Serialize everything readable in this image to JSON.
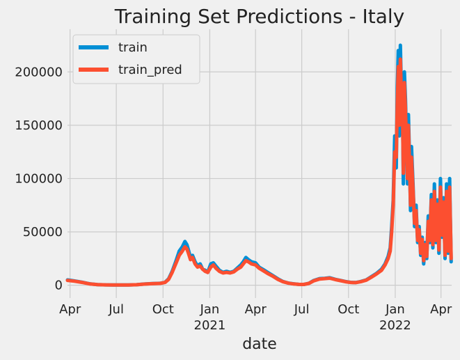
{
  "chart_data": {
    "type": "line",
    "title": "Training Set Predictions - Italy",
    "xlabel": "date",
    "ylabel": "",
    "x_range": [
      "2020-03-27",
      "2022-04-22"
    ],
    "ylim": [
      -12000,
      240000
    ],
    "y_ticks": [
      0,
      50000,
      100000,
      150000,
      200000
    ],
    "y_tick_labels": [
      "0",
      "50000",
      "100000",
      "150000",
      "200000"
    ],
    "x_ticks": [
      {
        "date": "2020-04-01",
        "label": "Apr",
        "sublabel": ""
      },
      {
        "date": "2020-07-01",
        "label": "Jul",
        "sublabel": ""
      },
      {
        "date": "2020-10-01",
        "label": "Oct",
        "sublabel": ""
      },
      {
        "date": "2021-01-01",
        "label": "Jan",
        "sublabel": "2021"
      },
      {
        "date": "2021-04-01",
        "label": "Apr",
        "sublabel": ""
      },
      {
        "date": "2021-07-01",
        "label": "Jul",
        "sublabel": ""
      },
      {
        "date": "2021-10-01",
        "label": "Oct",
        "sublabel": ""
      },
      {
        "date": "2022-01-01",
        "label": "Jan",
        "sublabel": "2022"
      },
      {
        "date": "2022-04-01",
        "label": "Apr",
        "sublabel": ""
      }
    ],
    "grid": true,
    "legend_position": "top-left",
    "series": [
      {
        "name": "train",
        "color": "#008fd5",
        "points": [
          [
            "2020-03-27",
            5000
          ],
          [
            "2020-04-10",
            4000
          ],
          [
            "2020-04-25",
            2800
          ],
          [
            "2020-05-10",
            1300
          ],
          [
            "2020-05-25",
            600
          ],
          [
            "2020-06-10",
            350
          ],
          [
            "2020-06-25",
            250
          ],
          [
            "2020-07-10",
            200
          ],
          [
            "2020-07-25",
            280
          ],
          [
            "2020-08-10",
            450
          ],
          [
            "2020-08-25",
            1100
          ],
          [
            "2020-09-10",
            1500
          ],
          [
            "2020-09-25",
            1800
          ],
          [
            "2020-10-05",
            2800
          ],
          [
            "2020-10-12",
            6000
          ],
          [
            "2020-10-19",
            13000
          ],
          [
            "2020-10-26",
            22000
          ],
          [
            "2020-11-02",
            32000
          ],
          [
            "2020-11-08",
            36000
          ],
          [
            "2020-11-13",
            41000
          ],
          [
            "2020-11-17",
            38000
          ],
          [
            "2020-11-20",
            33000
          ],
          [
            "2020-11-24",
            26000
          ],
          [
            "2020-11-28",
            28000
          ],
          [
            "2020-12-03",
            22000
          ],
          [
            "2020-12-08",
            18000
          ],
          [
            "2020-12-13",
            20000
          ],
          [
            "2020-12-18",
            15000
          ],
          [
            "2020-12-23",
            14000
          ],
          [
            "2020-12-28",
            12000
          ],
          [
            "2021-01-03",
            20000
          ],
          [
            "2021-01-08",
            21000
          ],
          [
            "2021-01-13",
            18000
          ],
          [
            "2021-01-20",
            14000
          ],
          [
            "2021-01-27",
            12000
          ],
          [
            "2021-02-03",
            13000
          ],
          [
            "2021-02-10",
            12000
          ],
          [
            "2021-02-17",
            13000
          ],
          [
            "2021-02-24",
            16000
          ],
          [
            "2021-03-03",
            19000
          ],
          [
            "2021-03-08",
            22000
          ],
          [
            "2021-03-13",
            26000
          ],
          [
            "2021-03-18",
            24000
          ],
          [
            "2021-03-24",
            22000
          ],
          [
            "2021-04-01",
            21000
          ],
          [
            "2021-04-08",
            17000
          ],
          [
            "2021-04-15",
            15000
          ],
          [
            "2021-04-25",
            12000
          ],
          [
            "2021-05-05",
            9000
          ],
          [
            "2021-05-15",
            6000
          ],
          [
            "2021-05-25",
            3500
          ],
          [
            "2021-06-05",
            2000
          ],
          [
            "2021-06-15",
            1300
          ],
          [
            "2021-06-25",
            800
          ],
          [
            "2021-07-05",
            700
          ],
          [
            "2021-07-15",
            1800
          ],
          [
            "2021-07-25",
            4500
          ],
          [
            "2021-08-05",
            6200
          ],
          [
            "2021-08-15",
            6500
          ],
          [
            "2021-08-25",
            7000
          ],
          [
            "2021-09-05",
            5500
          ],
          [
            "2021-09-15",
            4500
          ],
          [
            "2021-09-25",
            3500
          ],
          [
            "2021-10-05",
            2700
          ],
          [
            "2021-10-15",
            2500
          ],
          [
            "2021-10-25",
            3500
          ],
          [
            "2021-11-05",
            5000
          ],
          [
            "2021-11-15",
            8000
          ],
          [
            "2021-11-25",
            11000
          ],
          [
            "2021-12-05",
            15000
          ],
          [
            "2021-12-12",
            20000
          ],
          [
            "2021-12-18",
            27000
          ],
          [
            "2021-12-22",
            35000
          ],
          [
            "2021-12-25",
            55000
          ],
          [
            "2021-12-28",
            80000
          ],
          [
            "2021-12-31",
            140000
          ],
          [
            "2022-01-03",
            110000
          ],
          [
            "2022-01-05",
            185000
          ],
          [
            "2022-01-07",
            220000
          ],
          [
            "2022-01-09",
            140000
          ],
          [
            "2022-01-11",
            225000
          ],
          [
            "2022-01-13",
            185000
          ],
          [
            "2022-01-15",
            180000
          ],
          [
            "2022-01-17",
            95000
          ],
          [
            "2022-01-19",
            200000
          ],
          [
            "2022-01-21",
            175000
          ],
          [
            "2022-01-23",
            140000
          ],
          [
            "2022-01-25",
            95000
          ],
          [
            "2022-01-27",
            160000
          ],
          [
            "2022-01-29",
            120000
          ],
          [
            "2022-01-31",
            70000
          ],
          [
            "2022-02-02",
            130000
          ],
          [
            "2022-02-05",
            95000
          ],
          [
            "2022-02-08",
            55000
          ],
          [
            "2022-02-11",
            75000
          ],
          [
            "2022-02-14",
            40000
          ],
          [
            "2022-02-17",
            55000
          ],
          [
            "2022-02-20",
            28000
          ],
          [
            "2022-02-23",
            45000
          ],
          [
            "2022-02-26",
            20000
          ],
          [
            "2022-03-01",
            40000
          ],
          [
            "2022-03-04",
            25000
          ],
          [
            "2022-03-07",
            65000
          ],
          [
            "2022-03-10",
            40000
          ],
          [
            "2022-03-13",
            85000
          ],
          [
            "2022-03-16",
            35000
          ],
          [
            "2022-03-19",
            95000
          ],
          [
            "2022-03-22",
            40000
          ],
          [
            "2022-03-25",
            80000
          ],
          [
            "2022-03-28",
            30000
          ],
          [
            "2022-03-31",
            100000
          ],
          [
            "2022-04-03",
            45000
          ],
          [
            "2022-04-06",
            82000
          ],
          [
            "2022-04-09",
            25000
          ],
          [
            "2022-04-12",
            95000
          ],
          [
            "2022-04-15",
            30000
          ],
          [
            "2022-04-18",
            100000
          ],
          [
            "2022-04-21",
            22000
          ]
        ]
      },
      {
        "name": "train_pred",
        "color": "#fc4f30",
        "points": [
          [
            "2020-03-27",
            4500
          ],
          [
            "2020-04-10",
            3800
          ],
          [
            "2020-04-25",
            2600
          ],
          [
            "2020-05-10",
            1200
          ],
          [
            "2020-05-25",
            550
          ],
          [
            "2020-06-10",
            320
          ],
          [
            "2020-06-25",
            240
          ],
          [
            "2020-07-10",
            220
          ],
          [
            "2020-07-25",
            300
          ],
          [
            "2020-08-10",
            480
          ],
          [
            "2020-08-25",
            1050
          ],
          [
            "2020-09-10",
            1450
          ],
          [
            "2020-09-25",
            1700
          ],
          [
            "2020-10-05",
            2600
          ],
          [
            "2020-10-12",
            5500
          ],
          [
            "2020-10-19",
            12000
          ],
          [
            "2020-10-26",
            20000
          ],
          [
            "2020-11-02",
            28000
          ],
          [
            "2020-11-08",
            32000
          ],
          [
            "2020-11-13",
            36000
          ],
          [
            "2020-11-17",
            34000
          ],
          [
            "2020-11-20",
            30000
          ],
          [
            "2020-11-24",
            24000
          ],
          [
            "2020-11-28",
            26000
          ],
          [
            "2020-12-03",
            20000
          ],
          [
            "2020-12-08",
            17000
          ],
          [
            "2020-12-13",
            18000
          ],
          [
            "2020-12-18",
            15000
          ],
          [
            "2020-12-23",
            13000
          ],
          [
            "2020-12-28",
            12000
          ],
          [
            "2021-01-03",
            17000
          ],
          [
            "2021-01-08",
            19000
          ],
          [
            "2021-01-13",
            16000
          ],
          [
            "2021-01-20",
            13000
          ],
          [
            "2021-01-27",
            11500
          ],
          [
            "2021-02-03",
            12000
          ],
          [
            "2021-02-10",
            11500
          ],
          [
            "2021-02-17",
            12500
          ],
          [
            "2021-02-24",
            15000
          ],
          [
            "2021-03-03",
            17000
          ],
          [
            "2021-03-08",
            20000
          ],
          [
            "2021-03-13",
            23000
          ],
          [
            "2021-03-18",
            22000
          ],
          [
            "2021-03-24",
            20000
          ],
          [
            "2021-04-01",
            19000
          ],
          [
            "2021-04-08",
            16000
          ],
          [
            "2021-04-15",
            14000
          ],
          [
            "2021-04-25",
            11000
          ],
          [
            "2021-05-05",
            8500
          ],
          [
            "2021-05-15",
            5500
          ],
          [
            "2021-05-25",
            3300
          ],
          [
            "2021-06-05",
            1900
          ],
          [
            "2021-06-15",
            1200
          ],
          [
            "2021-06-25",
            800
          ],
          [
            "2021-07-05",
            700
          ],
          [
            "2021-07-15",
            1700
          ],
          [
            "2021-07-25",
            4200
          ],
          [
            "2021-08-05",
            5800
          ],
          [
            "2021-08-15",
            6200
          ],
          [
            "2021-08-25",
            6600
          ],
          [
            "2021-09-05",
            5300
          ],
          [
            "2021-09-15",
            4300
          ],
          [
            "2021-09-25",
            3300
          ],
          [
            "2021-10-05",
            2600
          ],
          [
            "2021-10-15",
            2400
          ],
          [
            "2021-10-25",
            3300
          ],
          [
            "2021-11-05",
            4800
          ],
          [
            "2021-11-15",
            7500
          ],
          [
            "2021-11-25",
            10500
          ],
          [
            "2021-12-05",
            14000
          ],
          [
            "2021-12-12",
            19000
          ],
          [
            "2021-12-18",
            25000
          ],
          [
            "2021-12-22",
            32000
          ],
          [
            "2021-12-25",
            50000
          ],
          [
            "2021-12-28",
            75000
          ],
          [
            "2021-12-31",
            125000
          ],
          [
            "2022-01-03",
            120000
          ],
          [
            "2022-01-05",
            170000
          ],
          [
            "2022-01-07",
            205000
          ],
          [
            "2022-01-09",
            150000
          ],
          [
            "2022-01-11",
            212000
          ],
          [
            "2022-01-13",
            178000
          ],
          [
            "2022-01-15",
            170000
          ],
          [
            "2022-01-17",
            105000
          ],
          [
            "2022-01-19",
            190000
          ],
          [
            "2022-01-21",
            165000
          ],
          [
            "2022-01-23",
            135000
          ],
          [
            "2022-01-25",
            100000
          ],
          [
            "2022-01-27",
            150000
          ],
          [
            "2022-01-29",
            115000
          ],
          [
            "2022-01-31",
            75000
          ],
          [
            "2022-02-02",
            120000
          ],
          [
            "2022-02-05",
            90000
          ],
          [
            "2022-02-08",
            58000
          ],
          [
            "2022-02-11",
            70000
          ],
          [
            "2022-02-14",
            42000
          ],
          [
            "2022-02-17",
            52000
          ],
          [
            "2022-02-20",
            30000
          ],
          [
            "2022-02-23",
            43000
          ],
          [
            "2022-02-26",
            23000
          ],
          [
            "2022-03-01",
            38000
          ],
          [
            "2022-03-04",
            27000
          ],
          [
            "2022-03-07",
            60000
          ],
          [
            "2022-03-10",
            42000
          ],
          [
            "2022-03-13",
            80000
          ],
          [
            "2022-03-16",
            38000
          ],
          [
            "2022-03-19",
            88000
          ],
          [
            "2022-03-22",
            42000
          ],
          [
            "2022-03-25",
            76000
          ],
          [
            "2022-03-28",
            33000
          ],
          [
            "2022-03-31",
            92000
          ],
          [
            "2022-04-03",
            47000
          ],
          [
            "2022-04-06",
            78000
          ],
          [
            "2022-04-09",
            28000
          ],
          [
            "2022-04-12",
            88000
          ],
          [
            "2022-04-15",
            32000
          ],
          [
            "2022-04-18",
            92000
          ],
          [
            "2022-04-21",
            25000
          ]
        ]
      }
    ]
  }
}
